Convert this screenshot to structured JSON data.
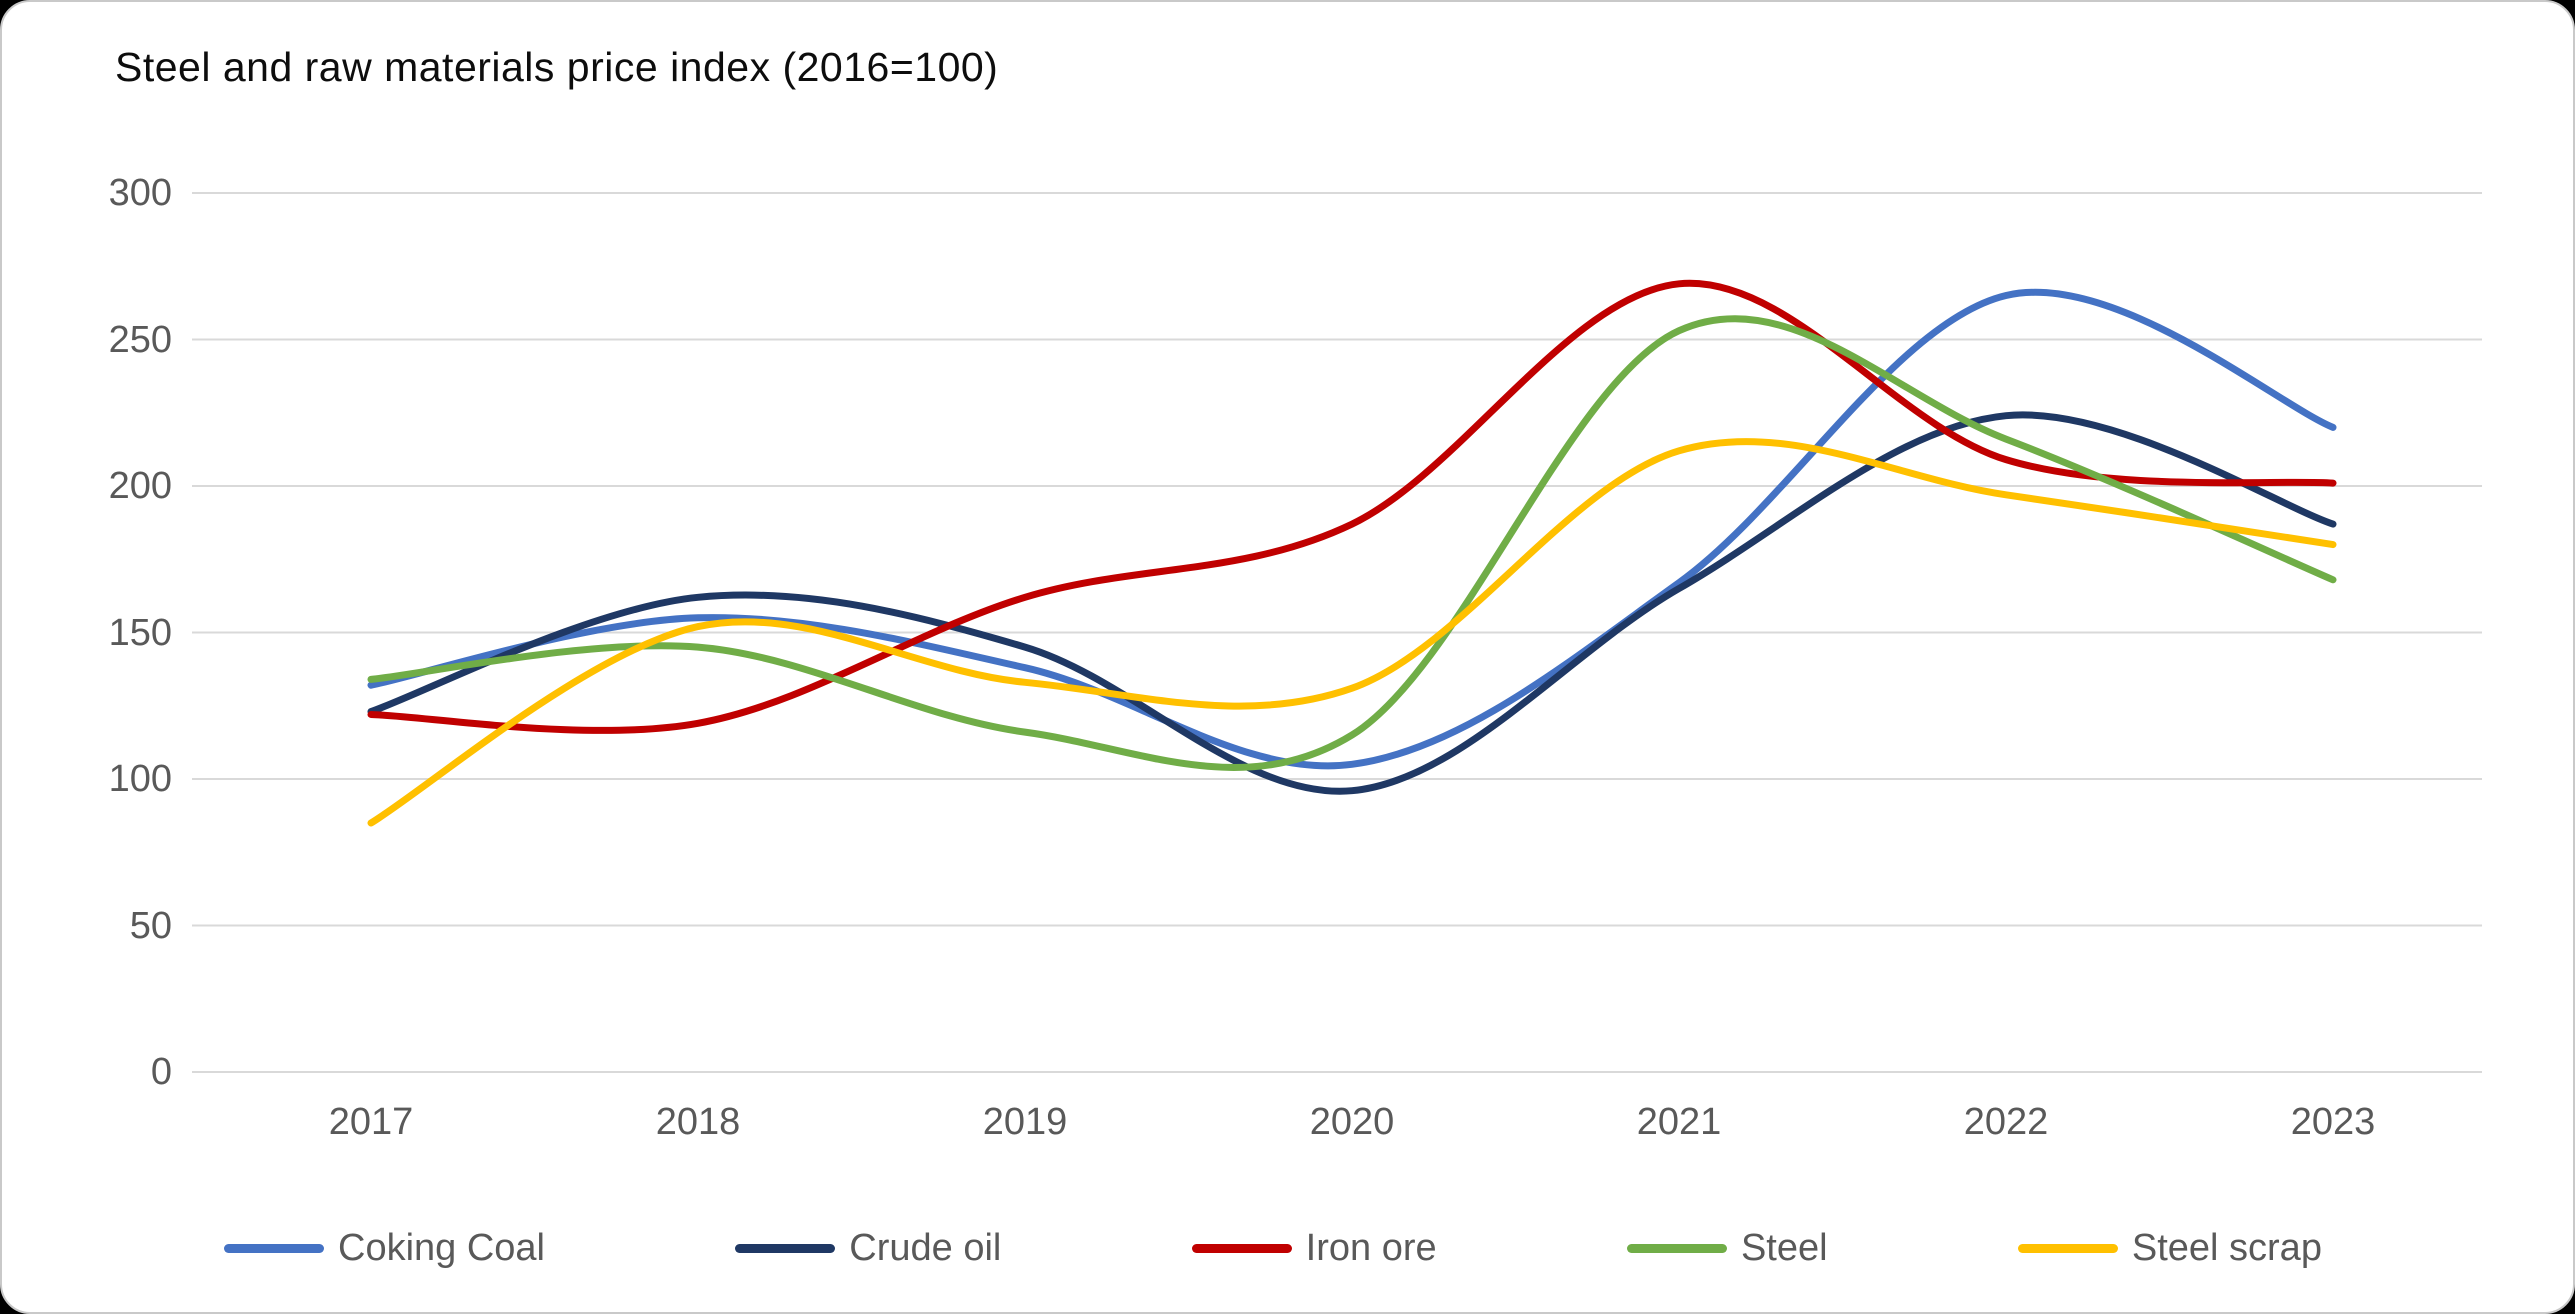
{
  "title": "Steel and raw materials price index (2016=100)",
  "axes": {
    "y_ticks": [
      "300",
      "250",
      "200",
      "150",
      "100",
      "50",
      "0"
    ],
    "x_ticks": [
      "2017",
      "2018",
      "2019",
      "2020",
      "2021",
      "2022",
      "2023"
    ]
  },
  "legend": {
    "items": [
      {
        "label": "Coking Coal",
        "color": "#4472C4"
      },
      {
        "label": "Crude oil",
        "color": "#1F3864"
      },
      {
        "label": "Iron ore",
        "color": "#C00000"
      },
      {
        "label": "Steel",
        "color": "#70AD47"
      },
      {
        "label": "Steel scrap",
        "color": "#FFC000"
      }
    ]
  },
  "chart_data": {
    "type": "line",
    "title": "Steel and raw materials price index (2016=100)",
    "x": [
      2017,
      2018,
      2019,
      2020,
      2021,
      2022,
      2023
    ],
    "series": [
      {
        "name": "Coking Coal",
        "color": "#4472C4",
        "values": [
          132,
          155,
          138,
          105,
          167,
          265,
          220
        ]
      },
      {
        "name": "Crude oil",
        "color": "#1F3864",
        "values": [
          123,
          162,
          145,
          96,
          165,
          224,
          187
        ]
      },
      {
        "name": "Iron ore",
        "color": "#C00000",
        "values": [
          122,
          119,
          162,
          187,
          269,
          209,
          201
        ]
      },
      {
        "name": "Steel",
        "color": "#70AD47",
        "values": [
          134,
          145,
          116,
          115,
          253,
          216,
          168
        ]
      },
      {
        "name": "Steel scrap",
        "color": "#FFC000",
        "values": [
          85,
          152,
          133,
          131,
          212,
          197,
          180
        ]
      }
    ],
    "xlabel": "",
    "ylabel": "",
    "ylim": [
      0,
      300
    ],
    "y_gridline_step": 50,
    "grid": true,
    "line_smoothing": "spline",
    "legend_position": "bottom",
    "gridline_color": "#D9D9D9",
    "background_color": "#FFFFFF"
  }
}
